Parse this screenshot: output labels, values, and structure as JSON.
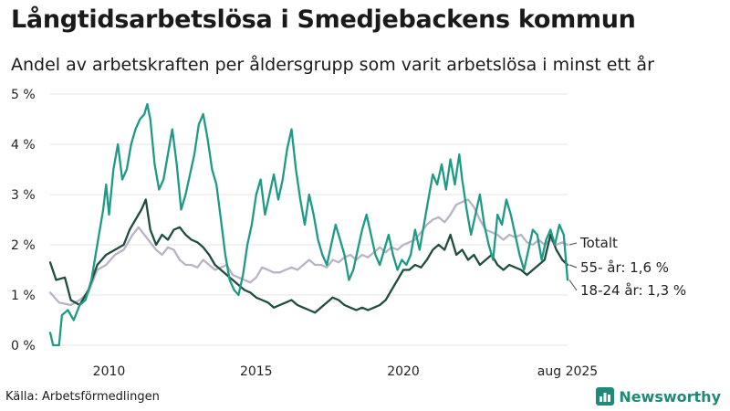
{
  "title": "Långtidsarbetslösa i Smedjebackens kommun",
  "subtitle": "Andel av arbetskraften per åldersgrupp som varit arbetslösa i minst ett år",
  "source": "Källa: Arbetsförmedlingen",
  "brand": {
    "name": "Newsworthy",
    "icon": "bar-chart-logo-icon"
  },
  "colors": {
    "totalt": "#b9b3c5",
    "age55": "#1f4d3f",
    "age1824": "#1f9a86",
    "grid": "#e4e4e4",
    "brand": "#1f8a78"
  },
  "chart_data": {
    "type": "line",
    "title": "Långtidsarbetslösa i Smedjebackens kommun",
    "xlabel": "",
    "ylabel": "",
    "xlim": [
      2008.0,
      2025.58
    ],
    "ylim": [
      0,
      5
    ],
    "y_ticks": [
      {
        "value": 0,
        "label": "0 %"
      },
      {
        "value": 1,
        "label": "1 %"
      },
      {
        "value": 2,
        "label": "2 %"
      },
      {
        "value": 3,
        "label": "3 %"
      },
      {
        "value": 4,
        "label": "4 %"
      },
      {
        "value": 5,
        "label": "5 %"
      }
    ],
    "x_ticks": [
      {
        "value": 2010,
        "label": "2010"
      },
      {
        "value": 2015,
        "label": "2015"
      },
      {
        "value": 2020,
        "label": "2020"
      },
      {
        "value": 2025.58,
        "label": "aug 2025"
      }
    ],
    "series": [
      {
        "name": "Totalt",
        "label": "Totalt",
        "color_key": "totalt",
        "width": 2.3,
        "points": [
          [
            2008.0,
            1.05
          ],
          [
            2008.3,
            0.85
          ],
          [
            2008.7,
            0.8
          ],
          [
            2009.0,
            0.9
          ],
          [
            2009.3,
            1.05
          ],
          [
            2009.6,
            1.5
          ],
          [
            2009.9,
            1.6
          ],
          [
            2010.2,
            1.8
          ],
          [
            2010.5,
            1.9
          ],
          [
            2010.8,
            2.2
          ],
          [
            2011.0,
            2.35
          ],
          [
            2011.2,
            2.2
          ],
          [
            2011.4,
            2.05
          ],
          [
            2011.6,
            1.9
          ],
          [
            2011.8,
            1.8
          ],
          [
            2012.0,
            1.95
          ],
          [
            2012.2,
            1.9
          ],
          [
            2012.4,
            1.7
          ],
          [
            2012.6,
            1.6
          ],
          [
            2012.8,
            1.6
          ],
          [
            2013.0,
            1.55
          ],
          [
            2013.2,
            1.7
          ],
          [
            2013.4,
            1.6
          ],
          [
            2013.6,
            1.5
          ],
          [
            2013.8,
            1.55
          ],
          [
            2014.0,
            1.6
          ],
          [
            2014.2,
            1.4
          ],
          [
            2014.4,
            1.35
          ],
          [
            2014.6,
            1.3
          ],
          [
            2014.8,
            1.25
          ],
          [
            2015.0,
            1.35
          ],
          [
            2015.2,
            1.55
          ],
          [
            2015.4,
            1.5
          ],
          [
            2015.6,
            1.45
          ],
          [
            2015.8,
            1.45
          ],
          [
            2016.0,
            1.5
          ],
          [
            2016.2,
            1.55
          ],
          [
            2016.4,
            1.5
          ],
          [
            2016.6,
            1.6
          ],
          [
            2016.8,
            1.7
          ],
          [
            2017.0,
            1.6
          ],
          [
            2017.2,
            1.6
          ],
          [
            2017.4,
            1.55
          ],
          [
            2017.6,
            1.7
          ],
          [
            2017.8,
            1.65
          ],
          [
            2018.0,
            1.75
          ],
          [
            2018.2,
            1.8
          ],
          [
            2018.4,
            1.7
          ],
          [
            2018.6,
            1.8
          ],
          [
            2018.8,
            1.75
          ],
          [
            2019.0,
            1.85
          ],
          [
            2019.2,
            1.95
          ],
          [
            2019.4,
            1.85
          ],
          [
            2019.6,
            1.95
          ],
          [
            2019.8,
            1.9
          ],
          [
            2020.0,
            2.0
          ],
          [
            2020.2,
            2.05
          ],
          [
            2020.4,
            2.1
          ],
          [
            2020.6,
            2.25
          ],
          [
            2020.8,
            2.4
          ],
          [
            2021.0,
            2.5
          ],
          [
            2021.2,
            2.55
          ],
          [
            2021.4,
            2.45
          ],
          [
            2021.6,
            2.6
          ],
          [
            2021.8,
            2.8
          ],
          [
            2022.0,
            2.85
          ],
          [
            2022.2,
            2.9
          ],
          [
            2022.4,
            2.75
          ],
          [
            2022.6,
            2.5
          ],
          [
            2022.8,
            2.3
          ],
          [
            2023.0,
            2.25
          ],
          [
            2023.2,
            2.2
          ],
          [
            2023.4,
            2.1
          ],
          [
            2023.6,
            2.2
          ],
          [
            2023.8,
            2.15
          ],
          [
            2024.0,
            2.2
          ],
          [
            2024.2,
            2.05
          ],
          [
            2024.4,
            2.0
          ],
          [
            2024.6,
            2.1
          ],
          [
            2024.8,
            2.0
          ],
          [
            2025.0,
            2.1
          ],
          [
            2025.2,
            2.0
          ],
          [
            2025.4,
            2.05
          ],
          [
            2025.58,
            2.0
          ]
        ]
      },
      {
        "name": "55- år",
        "label": "55- år: 1,6 %",
        "color_key": "age55",
        "width": 2.3,
        "points": [
          [
            2008.0,
            1.65
          ],
          [
            2008.2,
            1.3
          ],
          [
            2008.5,
            1.35
          ],
          [
            2008.7,
            0.9
          ],
          [
            2009.0,
            0.8
          ],
          [
            2009.3,
            1.1
          ],
          [
            2009.6,
            1.6
          ],
          [
            2009.9,
            1.8
          ],
          [
            2010.2,
            1.9
          ],
          [
            2010.5,
            2.0
          ],
          [
            2010.7,
            2.3
          ],
          [
            2010.9,
            2.5
          ],
          [
            2011.1,
            2.7
          ],
          [
            2011.25,
            2.9
          ],
          [
            2011.4,
            2.3
          ],
          [
            2011.6,
            2.0
          ],
          [
            2011.8,
            2.2
          ],
          [
            2012.0,
            2.1
          ],
          [
            2012.2,
            2.3
          ],
          [
            2012.4,
            2.35
          ],
          [
            2012.6,
            2.2
          ],
          [
            2012.8,
            2.1
          ],
          [
            2013.0,
            2.05
          ],
          [
            2013.2,
            1.95
          ],
          [
            2013.4,
            1.8
          ],
          [
            2013.6,
            1.6
          ],
          [
            2013.8,
            1.5
          ],
          [
            2014.0,
            1.4
          ],
          [
            2014.2,
            1.3
          ],
          [
            2014.4,
            1.2
          ],
          [
            2014.6,
            1.1
          ],
          [
            2014.8,
            1.05
          ],
          [
            2015.0,
            0.95
          ],
          [
            2015.2,
            0.9
          ],
          [
            2015.4,
            0.85
          ],
          [
            2015.6,
            0.75
          ],
          [
            2015.8,
            0.8
          ],
          [
            2016.0,
            0.85
          ],
          [
            2016.2,
            0.9
          ],
          [
            2016.4,
            0.8
          ],
          [
            2016.6,
            0.75
          ],
          [
            2016.8,
            0.7
          ],
          [
            2017.0,
            0.65
          ],
          [
            2017.2,
            0.75
          ],
          [
            2017.4,
            0.85
          ],
          [
            2017.6,
            0.95
          ],
          [
            2017.8,
            0.9
          ],
          [
            2018.0,
            0.8
          ],
          [
            2018.2,
            0.75
          ],
          [
            2018.4,
            0.7
          ],
          [
            2018.6,
            0.75
          ],
          [
            2018.8,
            0.7
          ],
          [
            2019.0,
            0.75
          ],
          [
            2019.2,
            0.8
          ],
          [
            2019.4,
            0.9
          ],
          [
            2019.6,
            1.1
          ],
          [
            2019.8,
            1.3
          ],
          [
            2020.0,
            1.5
          ],
          [
            2020.2,
            1.5
          ],
          [
            2020.4,
            1.6
          ],
          [
            2020.6,
            1.55
          ],
          [
            2020.8,
            1.7
          ],
          [
            2021.0,
            1.9
          ],
          [
            2021.2,
            2.0
          ],
          [
            2021.4,
            1.9
          ],
          [
            2021.6,
            2.2
          ],
          [
            2021.8,
            1.8
          ],
          [
            2022.0,
            1.9
          ],
          [
            2022.2,
            1.7
          ],
          [
            2022.4,
            1.8
          ],
          [
            2022.6,
            1.6
          ],
          [
            2022.8,
            1.7
          ],
          [
            2023.0,
            1.8
          ],
          [
            2023.2,
            1.6
          ],
          [
            2023.4,
            1.5
          ],
          [
            2023.6,
            1.6
          ],
          [
            2023.8,
            1.55
          ],
          [
            2024.0,
            1.5
          ],
          [
            2024.2,
            1.4
          ],
          [
            2024.4,
            1.5
          ],
          [
            2024.6,
            1.6
          ],
          [
            2024.8,
            1.7
          ],
          [
            2025.0,
            2.2
          ],
          [
            2025.2,
            1.9
          ],
          [
            2025.4,
            1.7
          ],
          [
            2025.58,
            1.6
          ]
        ]
      },
      {
        "name": "18-24 år",
        "label": "18-24 år: 1,3 %",
        "color_key": "age1824",
        "width": 2.3,
        "points": [
          [
            2008.0,
            0.25
          ],
          [
            2008.1,
            0.0
          ],
          [
            2008.3,
            0.0
          ],
          [
            2008.4,
            0.6
          ],
          [
            2008.6,
            0.7
          ],
          [
            2008.8,
            0.5
          ],
          [
            2009.0,
            0.8
          ],
          [
            2009.2,
            0.9
          ],
          [
            2009.4,
            1.3
          ],
          [
            2009.6,
            2.0
          ],
          [
            2009.8,
            2.7
          ],
          [
            2009.9,
            3.2
          ],
          [
            2010.0,
            2.6
          ],
          [
            2010.15,
            3.5
          ],
          [
            2010.3,
            4.0
          ],
          [
            2010.45,
            3.3
          ],
          [
            2010.6,
            3.5
          ],
          [
            2010.75,
            4.0
          ],
          [
            2010.9,
            4.3
          ],
          [
            2011.05,
            4.5
          ],
          [
            2011.2,
            4.6
          ],
          [
            2011.3,
            4.8
          ],
          [
            2011.4,
            4.5
          ],
          [
            2011.55,
            3.6
          ],
          [
            2011.7,
            3.1
          ],
          [
            2011.85,
            3.3
          ],
          [
            2012.0,
            3.8
          ],
          [
            2012.15,
            4.3
          ],
          [
            2012.3,
            3.6
          ],
          [
            2012.45,
            2.7
          ],
          [
            2012.6,
            3.0
          ],
          [
            2012.75,
            3.4
          ],
          [
            2012.9,
            3.8
          ],
          [
            2013.05,
            4.4
          ],
          [
            2013.2,
            4.6
          ],
          [
            2013.35,
            4.1
          ],
          [
            2013.5,
            3.5
          ],
          [
            2013.65,
            3.2
          ],
          [
            2013.8,
            2.5
          ],
          [
            2013.95,
            1.8
          ],
          [
            2014.1,
            1.3
          ],
          [
            2014.25,
            1.1
          ],
          [
            2014.4,
            1.0
          ],
          [
            2014.55,
            1.4
          ],
          [
            2014.7,
            2.0
          ],
          [
            2014.85,
            2.4
          ],
          [
            2015.0,
            3.0
          ],
          [
            2015.15,
            3.3
          ],
          [
            2015.3,
            2.6
          ],
          [
            2015.45,
            3.0
          ],
          [
            2015.6,
            3.4
          ],
          [
            2015.75,
            2.9
          ],
          [
            2015.9,
            3.3
          ],
          [
            2016.05,
            3.9
          ],
          [
            2016.2,
            4.3
          ],
          [
            2016.35,
            3.5
          ],
          [
            2016.5,
            2.9
          ],
          [
            2016.65,
            2.4
          ],
          [
            2016.8,
            3.0
          ],
          [
            2016.95,
            2.6
          ],
          [
            2017.1,
            2.1
          ],
          [
            2017.25,
            1.8
          ],
          [
            2017.4,
            1.6
          ],
          [
            2017.55,
            2.0
          ],
          [
            2017.7,
            2.4
          ],
          [
            2017.85,
            2.1
          ],
          [
            2018.0,
            1.8
          ],
          [
            2018.15,
            1.3
          ],
          [
            2018.3,
            1.5
          ],
          [
            2018.45,
            1.9
          ],
          [
            2018.6,
            2.3
          ],
          [
            2018.75,
            2.6
          ],
          [
            2018.9,
            2.2
          ],
          [
            2019.05,
            1.8
          ],
          [
            2019.2,
            1.6
          ],
          [
            2019.35,
            1.9
          ],
          [
            2019.5,
            2.2
          ],
          [
            2019.65,
            1.8
          ],
          [
            2019.8,
            1.5
          ],
          [
            2019.95,
            1.7
          ],
          [
            2020.1,
            1.6
          ],
          [
            2020.25,
            1.8
          ],
          [
            2020.4,
            2.3
          ],
          [
            2020.55,
            1.9
          ],
          [
            2020.7,
            2.4
          ],
          [
            2020.85,
            2.9
          ],
          [
            2021.0,
            3.4
          ],
          [
            2021.15,
            3.2
          ],
          [
            2021.3,
            3.6
          ],
          [
            2021.45,
            3.1
          ],
          [
            2021.6,
            3.7
          ],
          [
            2021.75,
            3.2
          ],
          [
            2021.9,
            3.8
          ],
          [
            2022.0,
            3.3
          ],
          [
            2022.15,
            2.7
          ],
          [
            2022.3,
            2.2
          ],
          [
            2022.45,
            2.6
          ],
          [
            2022.6,
            3.0
          ],
          [
            2022.75,
            2.4
          ],
          [
            2022.9,
            2.0
          ],
          [
            2023.05,
            1.7
          ],
          [
            2023.2,
            2.6
          ],
          [
            2023.35,
            2.4
          ],
          [
            2023.5,
            2.9
          ],
          [
            2023.65,
            2.6
          ],
          [
            2023.8,
            2.2
          ],
          [
            2023.95,
            1.8
          ],
          [
            2024.1,
            1.5
          ],
          [
            2024.25,
            1.9
          ],
          [
            2024.4,
            2.3
          ],
          [
            2024.55,
            2.2
          ],
          [
            2024.7,
            1.7
          ],
          [
            2024.85,
            2.1
          ],
          [
            2025.0,
            2.3
          ],
          [
            2025.15,
            2.0
          ],
          [
            2025.3,
            2.4
          ],
          [
            2025.45,
            2.2
          ],
          [
            2025.58,
            1.3
          ]
        ]
      }
    ]
  }
}
